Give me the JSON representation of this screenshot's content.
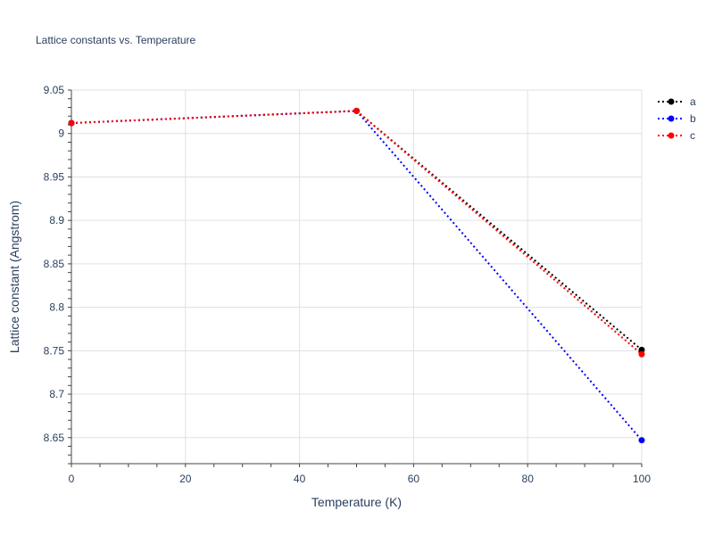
{
  "chart_data": {
    "type": "line",
    "title": "Lattice constants vs. Temperature",
    "xlabel": "Temperature (K)",
    "ylabel": "Lattice constant (Angstrom)",
    "xlim": [
      0,
      100
    ],
    "ylim": [
      8.62,
      9.05
    ],
    "xticks": [
      "0",
      "20",
      "40",
      "60",
      "80",
      "100"
    ],
    "xtick_values": [
      0,
      20,
      40,
      60,
      80,
      100
    ],
    "yticks": [
      "8.65",
      "8.7",
      "8.75",
      "8.8",
      "8.85",
      "8.9",
      "8.95",
      "9",
      "9.05"
    ],
    "ytick_values": [
      8.65,
      8.7,
      8.75,
      8.8,
      8.85,
      8.9,
      8.95,
      9.0,
      9.05
    ],
    "grid": true,
    "legend_position": "top-right",
    "line_style": "dotted",
    "series": [
      {
        "name": "a",
        "color": "#000000",
        "x": [
          0,
          50,
          100
        ],
        "y": [
          9.012,
          9.026,
          8.751
        ]
      },
      {
        "name": "b",
        "color": "#0000ff",
        "x": [
          0,
          50,
          100
        ],
        "y": [
          9.012,
          9.026,
          8.647
        ]
      },
      {
        "name": "c",
        "color": "#ff0000",
        "x": [
          0,
          50,
          100
        ],
        "y": [
          9.012,
          9.026,
          8.746
        ]
      }
    ]
  }
}
